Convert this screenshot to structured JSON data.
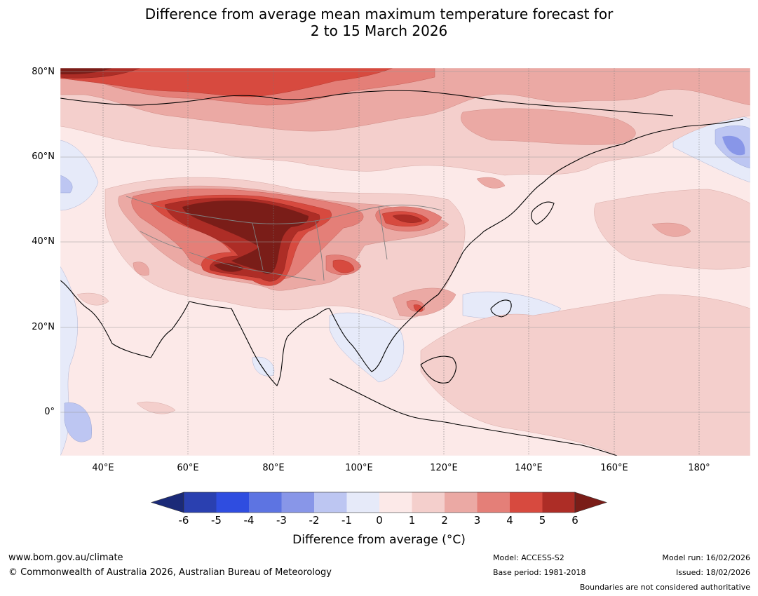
{
  "title": {
    "line1": "Difference from average mean maximum temperature forecast for",
    "line2": "2 to 15 March 2026"
  },
  "map": {
    "lat_labels": [
      "80°N",
      "60°N",
      "40°N",
      "20°N",
      "0°"
    ],
    "lon_labels": [
      "40°E",
      "60°E",
      "80°E",
      "100°E",
      "120°E",
      "140°E",
      "160°E",
      "180°"
    ],
    "lon_range": [
      30,
      192
    ],
    "lat_range": [
      -10,
      81
    ]
  },
  "colorbar": {
    "ticks": [
      "-6",
      "-5",
      "-4",
      "-3",
      "-2",
      "-1",
      "0",
      "1",
      "2",
      "3",
      "4",
      "5",
      "6"
    ],
    "colors": [
      "#1b2a78",
      "#2a40b0",
      "#2f4de0",
      "#5d74e2",
      "#8896e8",
      "#bdc6f2",
      "#e6eaf9",
      "#fce9e8",
      "#f4cfcc",
      "#eba9a4",
      "#e47f78",
      "#d74a3f",
      "#ad2d26",
      "#7a1d18"
    ],
    "label": "Difference from average (°C)",
    "label_main": "Difference from average (",
    "label_unit": "°C",
    "label_close": ")"
  },
  "footer": {
    "website": "www.bom.gov.au/climate",
    "copyright": "© Commonwealth of Australia 2026, Australian Bureau of Meteorology",
    "model": "Model: ACCESS-S2",
    "base_period": "Base period: 1981-2018",
    "model_run": "Model run: 16/02/2026",
    "issued": "Issued: 18/02/2026",
    "disclaimer": "Boundaries are not considered authoritative"
  }
}
